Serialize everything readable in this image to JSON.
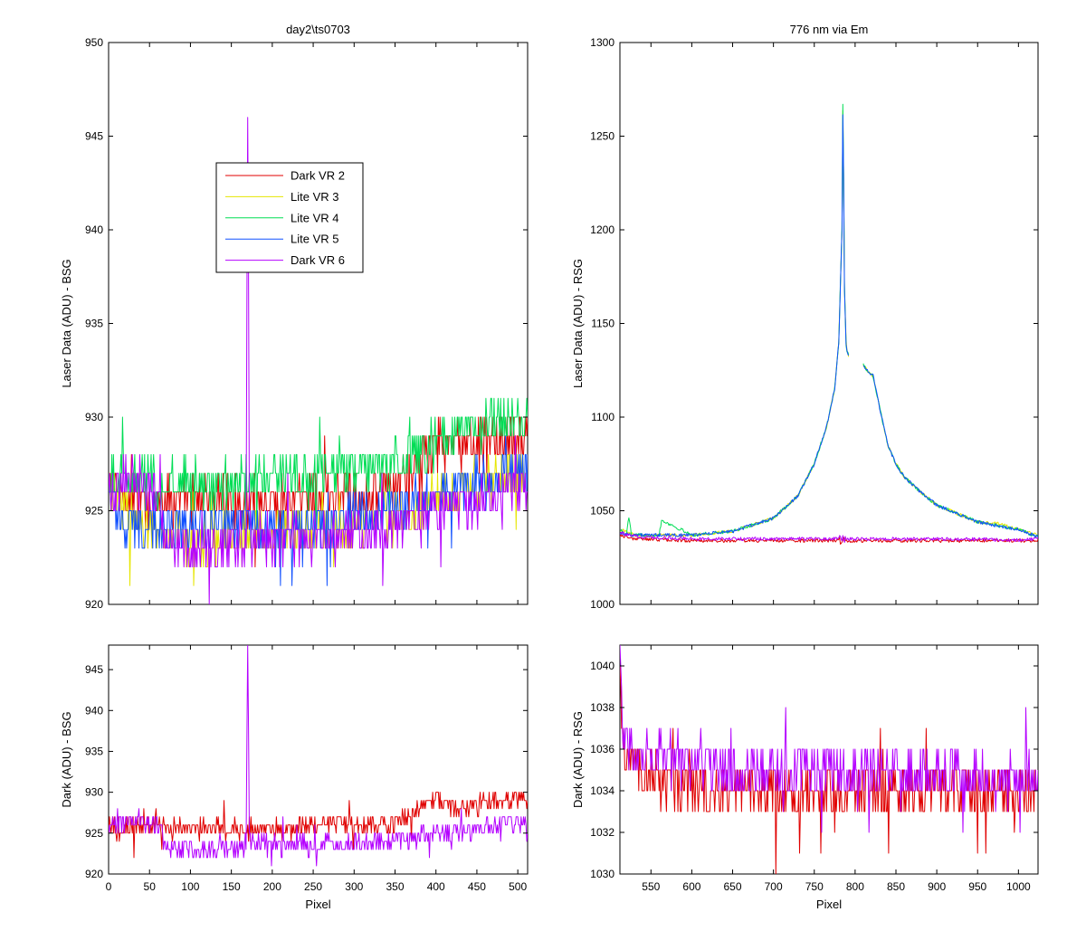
{
  "chart_data": [
    {
      "id": "left_top",
      "type": "line",
      "title": "day2\\ts0703",
      "xlabel": "",
      "ylabel": "Laser Data (ADU) - BSG",
      "xlim": [
        0,
        512
      ],
      "ylim": [
        920,
        950
      ],
      "xticks": [
        0,
        50,
        100,
        150,
        200,
        250,
        300,
        350,
        400,
        450,
        500
      ],
      "xtick_labels_shown": false,
      "yticks": [
        920,
        925,
        930,
        935,
        940,
        945,
        950
      ],
      "grid": false,
      "legend": {
        "position": "upper-left-center",
        "entries": [
          "Dark VR 2",
          "Lite VR 3",
          "Lite VR 4",
          "Lite VR 5",
          "Dark VR 6"
        ]
      },
      "series": [
        {
          "name": "Dark VR 2",
          "color": "#e00000",
          "x": [
            0,
            50,
            100,
            150,
            200,
            250,
            300,
            350,
            380,
            400,
            450,
            512
          ],
          "values": [
            926,
            925.5,
            925.5,
            925.5,
            925.5,
            925.8,
            926,
            926.2,
            927.5,
            928.5,
            928.5,
            928.8
          ]
        },
        {
          "name": "Lite VR 3",
          "color": "#e6e600",
          "x": [
            0,
            20,
            50,
            100,
            150,
            200,
            250,
            300,
            350,
            400,
            450,
            512
          ],
          "values": [
            926.5,
            925,
            924,
            923.5,
            923.5,
            923.8,
            924,
            924.3,
            924.5,
            925.5,
            926.5,
            927
          ]
        },
        {
          "name": "Lite VR 4",
          "color": "#00dd55",
          "x": [
            0,
            50,
            100,
            150,
            200,
            250,
            300,
            350,
            380,
            400,
            450,
            512
          ],
          "values": [
            927,
            926.5,
            926.5,
            926.5,
            926.8,
            927,
            927.2,
            927.5,
            928,
            928.8,
            929.5,
            929.8
          ]
        },
        {
          "name": "Lite VR 5",
          "color": "#1050ff",
          "x": [
            0,
            20,
            50,
            100,
            150,
            200,
            250,
            300,
            350,
            400,
            450,
            512
          ],
          "values": [
            925.5,
            924.5,
            924,
            924,
            924,
            924,
            924.3,
            924.8,
            925,
            925.8,
            926.5,
            927
          ]
        },
        {
          "name": "Dark VR 6",
          "color": "#b400ff",
          "x": [
            0,
            20,
            40,
            60,
            70,
            100,
            150,
            168,
            169,
            170,
            171,
            172,
            200,
            250,
            300,
            350,
            400,
            450,
            500,
            512
          ],
          "values": [
            926,
            926.5,
            926.5,
            926,
            923.5,
            923,
            923.2,
            923.5,
            935.5,
            947,
            938,
            924,
            923.5,
            923.5,
            923.8,
            924,
            925,
            925.5,
            926.3,
            926.5
          ]
        }
      ]
    },
    {
      "id": "right_top",
      "type": "line",
      "title": "776 nm via Em",
      "xlabel": "",
      "ylabel": "Laser Data (ADU) - RSG",
      "xlim": [
        512,
        1024
      ],
      "ylim": [
        1000,
        1300
      ],
      "xticks": [
        550,
        600,
        650,
        700,
        750,
        800,
        850,
        900,
        950,
        1000
      ],
      "xtick_labels_shown": false,
      "yticks": [
        1000,
        1050,
        1100,
        1150,
        1200,
        1250,
        1300
      ],
      "grid": false,
      "series": [
        {
          "name": "Dark VR 2",
          "color": "#e00000",
          "x": [
            512,
            530,
            600,
            700,
            800,
            900,
            1000,
            1024
          ],
          "values": [
            1037,
            1035,
            1034,
            1034,
            1034,
            1034,
            1034,
            1034
          ]
        },
        {
          "name": "Lite VR 3",
          "color": "#e6e600",
          "x": [
            512,
            530,
            560,
            600,
            650,
            700,
            730,
            750,
            765,
            775,
            780,
            784,
            785,
            786,
            787,
            789,
            790,
            792,
            810,
            815,
            822,
            830,
            840,
            850,
            860,
            880,
            900,
            950,
            975,
            1000,
            1024
          ],
          "values": [
            1040,
            1037,
            1037,
            1037,
            1039,
            1046,
            1058,
            1075,
            1095,
            1115,
            1140,
            1200,
            1265,
            1230,
            1170,
            1140,
            1135,
            1133,
            1128,
            1125,
            1122,
            1105,
            1085,
            1075,
            1068,
            1060,
            1053,
            1044,
            1043,
            1040,
            1037
          ]
        },
        {
          "name": "Lite VR 4",
          "color": "#00dd55",
          "x": [
            512,
            520,
            523,
            526,
            560,
            563,
            600,
            650,
            700,
            730,
            750,
            765,
            775,
            780,
            784,
            785,
            786,
            787,
            789,
            790,
            792,
            810,
            815,
            822,
            830,
            840,
            850,
            860,
            880,
            900,
            950,
            1000,
            1024
          ],
          "values": [
            1040,
            1037,
            1047,
            1037,
            1037,
            1045,
            1037,
            1039,
            1046,
            1058,
            1075,
            1095,
            1115,
            1140,
            1200,
            1266,
            1230,
            1170,
            1140,
            1135,
            1133,
            1128,
            1125,
            1122,
            1105,
            1085,
            1075,
            1068,
            1060,
            1053,
            1044,
            1040,
            1036
          ]
        },
        {
          "name": "Lite VR 5",
          "color": "#1050ff",
          "x": [
            512,
            530,
            560,
            600,
            650,
            700,
            730,
            750,
            765,
            775,
            780,
            784,
            785,
            786,
            787,
            789,
            790,
            792,
            810,
            815,
            822,
            830,
            840,
            850,
            860,
            880,
            900,
            950,
            1000,
            1024
          ],
          "values": [
            1038,
            1037,
            1037,
            1037,
            1039,
            1046,
            1058,
            1075,
            1095,
            1115,
            1140,
            1200,
            1262,
            1228,
            1168,
            1140,
            1135,
            1133,
            1128,
            1125,
            1122,
            1105,
            1085,
            1075,
            1068,
            1060,
            1053,
            1044,
            1040,
            1036
          ]
        },
        {
          "name": "Dark VR 6",
          "color": "#b400ff",
          "x": [
            512,
            520,
            540,
            600,
            700,
            800,
            900,
            1000,
            1024
          ],
          "values": [
            1039,
            1037,
            1036,
            1035,
            1035,
            1035,
            1035,
            1034.5,
            1035
          ]
        }
      ]
    },
    {
      "id": "left_bottom",
      "type": "line",
      "title": "",
      "xlabel": "Pixel",
      "ylabel": "Dark (ADU) - BSG",
      "xlim": [
        0,
        512
      ],
      "ylim": [
        920,
        948
      ],
      "xticks": [
        0,
        50,
        100,
        150,
        200,
        250,
        300,
        350,
        400,
        450,
        500
      ],
      "xtick_labels_shown": true,
      "yticks": [
        920,
        925,
        930,
        935,
        940,
        945
      ],
      "grid": false,
      "series": [
        {
          "name": "Dark VR 2",
          "color": "#e00000",
          "x": [
            0,
            50,
            100,
            150,
            200,
            250,
            300,
            350,
            370,
            380,
            400,
            420,
            450,
            500,
            512
          ],
          "values": [
            925.5,
            926,
            925.5,
            925.5,
            925.5,
            925.8,
            926,
            926.2,
            927.5,
            928,
            929.5,
            928,
            928.5,
            929,
            929
          ]
        },
        {
          "name": "Dark VR 6",
          "color": "#b400ff",
          "x": [
            0,
            20,
            40,
            60,
            70,
            100,
            150,
            168,
            169,
            170,
            171,
            172,
            200,
            250,
            300,
            350,
            400,
            450,
            500,
            512
          ],
          "values": [
            926,
            926.5,
            926.5,
            926,
            923.5,
            923,
            923.2,
            923.5,
            935.5,
            947,
            938,
            924,
            923.5,
            923.5,
            923.8,
            924,
            925,
            925.5,
            926.3,
            926.5
          ]
        }
      ]
    },
    {
      "id": "right_bottom",
      "type": "line",
      "title": "",
      "xlabel": "Pixel",
      "ylabel": "Dark (ADU) - RSG",
      "xlim": [
        512,
        1024
      ],
      "ylim": [
        1030,
        1041
      ],
      "xticks": [
        550,
        600,
        650,
        700,
        750,
        800,
        850,
        900,
        950,
        1000
      ],
      "xtick_labels_shown": true,
      "yticks": [
        1030,
        1032,
        1034,
        1036,
        1038,
        1040
      ],
      "grid": false,
      "series": [
        {
          "name": "Dark VR 2",
          "color": "#e00000",
          "x": [
            512,
            515,
            520,
            540,
            560,
            600,
            625,
            650,
            700,
            750,
            800,
            850,
            900,
            950,
            1000,
            1024
          ],
          "values": [
            1039,
            1037,
            1035.5,
            1035,
            1034.5,
            1034.5,
            1033.5,
            1034,
            1034,
            1034,
            1034,
            1034,
            1034,
            1034,
            1034,
            1034
          ]
        },
        {
          "name": "Dark VR 6",
          "color": "#b400ff",
          "x": [
            512,
            515,
            520,
            540,
            560,
            600,
            650,
            700,
            750,
            800,
            850,
            900,
            950,
            1000,
            1024
          ],
          "values": [
            1040,
            1037,
            1036,
            1035.5,
            1035.5,
            1035.5,
            1035,
            1035,
            1035,
            1035,
            1035,
            1034.8,
            1034.5,
            1034.5,
            1034.5
          ]
        }
      ]
    }
  ]
}
